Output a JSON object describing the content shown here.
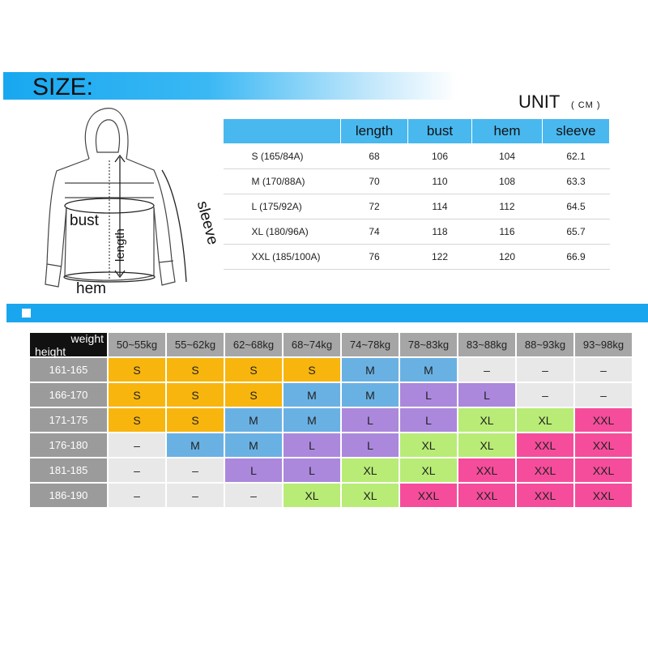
{
  "header": {
    "title": "SIZE:",
    "unit": "UNIT",
    "unit_sub": "( CM )"
  },
  "diagram": {
    "bust": "bust",
    "length": "length",
    "sleeve": "sleeve",
    "hem": "hem"
  },
  "measure": {
    "columns": [
      "length",
      "bust",
      "hem",
      "sleeve"
    ],
    "rows": [
      {
        "size": "S (165/84A)",
        "values": [
          "68",
          "106",
          "104",
          "62.1"
        ]
      },
      {
        "size": "M (170/88A)",
        "values": [
          "70",
          "110",
          "108",
          "63.3"
        ]
      },
      {
        "size": "L (175/92A)",
        "values": [
          "72",
          "114",
          "112",
          "64.5"
        ]
      },
      {
        "size": "XL (180/96A)",
        "values": [
          "74",
          "118",
          "116",
          "65.7"
        ]
      },
      {
        "size": "XXL (185/100A)",
        "values": [
          "76",
          "122",
          "120",
          "66.9"
        ]
      }
    ]
  },
  "chart": {
    "corner_weight": "weight",
    "corner_height": "height",
    "weights": [
      "50~55kg",
      "55~62kg",
      "62~68kg",
      "68~74kg",
      "74~78kg",
      "78~83kg",
      "83~88kg",
      "88~93kg",
      "93~98kg"
    ],
    "rows": [
      {
        "height": "161-165",
        "sizes": [
          "S",
          "S",
          "S",
          "S",
          "M",
          "M",
          "–",
          "–",
          "–"
        ]
      },
      {
        "height": "166-170",
        "sizes": [
          "S",
          "S",
          "S",
          "M",
          "M",
          "L",
          "L",
          "–",
          "–"
        ]
      },
      {
        "height": "171-175",
        "sizes": [
          "S",
          "S",
          "M",
          "M",
          "L",
          "L",
          "XL",
          "XL",
          "XXL"
        ]
      },
      {
        "height": "176-180",
        "sizes": [
          "–",
          "M",
          "M",
          "L",
          "L",
          "XL",
          "XL",
          "XXL",
          "XXL"
        ]
      },
      {
        "height": "181-185",
        "sizes": [
          "–",
          "–",
          "L",
          "L",
          "XL",
          "XL",
          "XXL",
          "XXL",
          "XXL"
        ]
      },
      {
        "height": "186-190",
        "sizes": [
          "–",
          "–",
          "–",
          "XL",
          "XL",
          "XXL",
          "XXL",
          "XXL",
          "XXL"
        ]
      }
    ],
    "colors": {
      "S": "#f8b50e",
      "M": "#6ab1e3",
      "L": "#ab88dc",
      "XL": "#b8ec76",
      "XXL": "#f54d9b",
      "none": "#e8e8e8"
    }
  }
}
